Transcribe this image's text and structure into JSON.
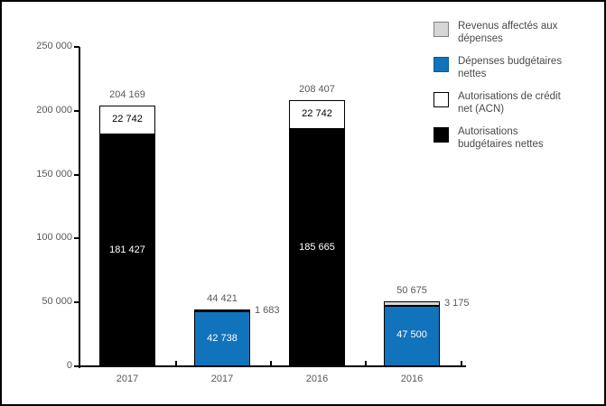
{
  "colors": {
    "blue": "#1173BC",
    "gray": "#D6D6D6",
    "black": "#000000",
    "white": "#FFFFFF",
    "axis": "#000000",
    "text_gray": "#595959",
    "legend_text": "#4A4A4A",
    "swatch_border_gray": "#808080",
    "swatch_border_blue": "#0A5A94",
    "swatch_border_dark": "#000000"
  },
  "chart_data": {
    "type": "bar",
    "stacked": true,
    "title": "",
    "xlabel": "",
    "ylabel": "",
    "ylim": [
      0,
      250000
    ],
    "grid": false,
    "legend_position": "top-right",
    "categories": [
      "2017",
      "2017",
      "2016",
      "2016"
    ],
    "yticks": [
      {
        "value": 250000,
        "label": "250 000"
      },
      {
        "value": 200000,
        "label": "200 000"
      },
      {
        "value": 150000,
        "label": "150 000"
      },
      {
        "value": 100000,
        "label": "100 000"
      },
      {
        "value": 50000,
        "label": "50 000"
      },
      {
        "value": 0,
        "label": "0"
      }
    ],
    "legend": [
      {
        "key": "gray",
        "label": "Revenus affectés aux dépenses",
        "lines": [
          "Revenus affectés aux",
          "dépenses"
        ]
      },
      {
        "key": "blue",
        "label": "Dépenses budgétaires nettes",
        "lines": [
          "Dépenses budgétaires",
          "nettes"
        ]
      },
      {
        "key": "white",
        "label": "Autorisations de crédit net (ACN)",
        "lines": [
          "Autorisations de crédit",
          "net (ACN)"
        ]
      },
      {
        "key": "black",
        "label": "Autorisations budgétaires nettes",
        "lines": [
          "Autorisations",
          "budgétaires nettes"
        ]
      }
    ],
    "bars": [
      {
        "category": "2017",
        "total": 204169,
        "total_label": "204 169",
        "segments": [
          {
            "series": "Autorisations budgétaires nettes",
            "key": "black",
            "value": 181427,
            "label": "181 427",
            "label_position": "inside"
          },
          {
            "series": "Autorisations de crédit net (ACN)",
            "key": "white",
            "value": 22742,
            "label": "22 742",
            "label_position": "inside"
          }
        ]
      },
      {
        "category": "2017",
        "total": 44421,
        "total_label": "44 421",
        "segments": [
          {
            "series": "Dépenses budgétaires nettes",
            "key": "blue",
            "value": 42738,
            "label": "42 738",
            "label_position": "inside"
          },
          {
            "series": "Revenus affectés aux dépenses",
            "key": "gray",
            "value": 1683,
            "label": "1 683",
            "label_position": "outside-right"
          }
        ]
      },
      {
        "category": "2016",
        "total": 208407,
        "total_label": "208 407",
        "segments": [
          {
            "series": "Autorisations budgétaires nettes",
            "key": "black",
            "value": 185665,
            "label": "185 665",
            "label_position": "inside"
          },
          {
            "series": "Autorisations de crédit net (ACN)",
            "key": "white",
            "value": 22742,
            "label": "22 742",
            "label_position": "inside"
          }
        ]
      },
      {
        "category": "2016",
        "total": 50675,
        "total_label": "50 675",
        "segments": [
          {
            "series": "Dépenses budgétaires nettes",
            "key": "blue",
            "value": 47500,
            "label": "47 500",
            "label_position": "inside"
          },
          {
            "series": "Revenus affectés aux dépenses",
            "key": "gray",
            "value": 3175,
            "label": "3 175",
            "label_position": "outside-right"
          }
        ]
      }
    ]
  }
}
